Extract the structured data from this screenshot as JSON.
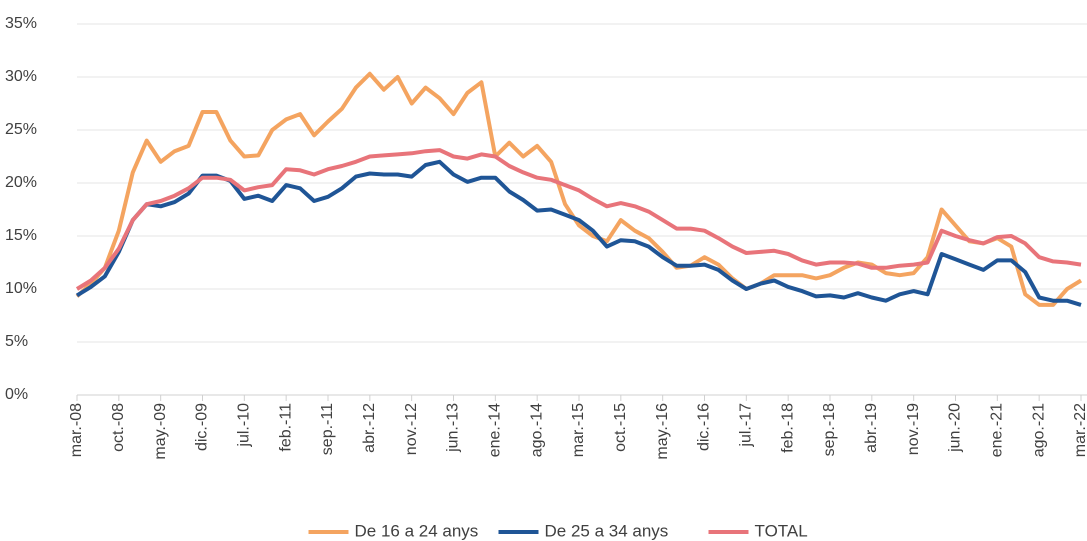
{
  "chart_data": {
    "type": "line",
    "categories": [
      "mar.-08",
      null,
      null,
      "oct.-08",
      null,
      null,
      "may.-09",
      null,
      null,
      "dic.-09",
      null,
      null,
      "jul.-10",
      null,
      null,
      "feb.-11",
      null,
      null,
      "sep.-11",
      null,
      null,
      "abr.-12",
      null,
      null,
      "nov.-12",
      null,
      null,
      "jun.-13",
      null,
      null,
      "ene.-14",
      null,
      null,
      "ago.-14",
      null,
      null,
      "mar.-15",
      null,
      null,
      "oct.-15",
      null,
      null,
      "may.-16",
      null,
      null,
      "dic.-16",
      null,
      null,
      "jul.-17",
      null,
      null,
      "feb.-18",
      null,
      null,
      "sep.-18",
      null,
      null,
      "abr.-19",
      null,
      null,
      "nov.-19",
      null,
      null,
      "jun.-20",
      null,
      null,
      "ene.-21",
      null,
      null,
      "ago.-21",
      null,
      null,
      "mar.-22"
    ],
    "series": [
      {
        "name": "De 16 a 24 anys",
        "color": "#f4a460",
        "values": [
          9.3,
          10.5,
          12,
          15.5,
          21,
          24,
          22,
          23,
          23.5,
          26.7,
          26.7,
          24,
          22.5,
          22.6,
          25,
          26,
          26.5,
          24.5,
          25.8,
          27,
          29,
          30.3,
          28.8,
          30,
          27.5,
          29,
          28,
          26.5,
          28.5,
          29.5,
          22.5,
          23.8,
          22.5,
          23.5,
          22,
          18,
          16,
          15,
          14.5,
          16.5,
          15.5,
          14.8,
          13.5,
          12,
          12.2,
          13,
          12.3,
          11,
          10,
          10.5,
          11.3,
          11.3,
          11.3,
          11,
          11.3,
          12,
          12.5,
          12.3,
          11.5,
          11.3,
          11.5,
          13,
          17.5,
          16,
          14.5,
          14.3,
          14.8,
          14,
          9.5,
          8.5,
          8.5,
          10,
          10.8
        ]
      },
      {
        "name": "De 25 a 34 anys",
        "color": "#1f5596",
        "values": [
          9.4,
          10.2,
          11.2,
          13.5,
          16.5,
          18,
          17.8,
          18.2,
          19,
          20.7,
          20.7,
          20.2,
          18.5,
          18.8,
          18.3,
          19.8,
          19.5,
          18.3,
          18.7,
          19.5,
          20.6,
          20.9,
          20.8,
          20.8,
          20.6,
          21.7,
          22,
          20.8,
          20.1,
          20.5,
          20.5,
          19.2,
          18.4,
          17.4,
          17.5,
          17,
          16.5,
          15.5,
          14,
          14.6,
          14.5,
          14,
          13,
          12.2,
          12.2,
          12.3,
          11.8,
          10.8,
          10,
          10.5,
          10.8,
          10.2,
          9.8,
          9.3,
          9.4,
          9.2,
          9.6,
          9.2,
          8.9,
          9.5,
          9.8,
          9.5,
          13.3,
          12.8,
          12.3,
          11.8,
          12.7,
          12.7,
          11.6,
          9.2,
          8.9,
          8.9,
          8.5
        ]
      },
      {
        "name": "TOTAL",
        "color": "#e8747a",
        "values": [
          10,
          10.8,
          12,
          13.8,
          16.5,
          18,
          18.3,
          18.8,
          19.5,
          20.5,
          20.5,
          20.3,
          19.3,
          19.6,
          19.8,
          21.3,
          21.2,
          20.8,
          21.3,
          21.6,
          22,
          22.5,
          22.6,
          22.7,
          22.8,
          23,
          23.1,
          22.5,
          22.3,
          22.7,
          22.5,
          21.6,
          21,
          20.5,
          20.3,
          19.8,
          19.3,
          18.5,
          17.8,
          18.1,
          17.8,
          17.3,
          16.5,
          15.7,
          15.7,
          15.5,
          14.8,
          14,
          13.4,
          13.5,
          13.6,
          13.3,
          12.7,
          12.3,
          12.5,
          12.5,
          12.4,
          12,
          12,
          12.2,
          12.3,
          12.5,
          15.5,
          15,
          14.6,
          14.3,
          14.9,
          15,
          14.3,
          13,
          12.6,
          12.5,
          12.3
        ]
      }
    ],
    "ylim": [
      0,
      35
    ],
    "yticks": [
      {
        "value": 0,
        "label": "0%"
      },
      {
        "value": 5,
        "label": "5%"
      },
      {
        "value": 10,
        "label": "10%"
      },
      {
        "value": 15,
        "label": "15%"
      },
      {
        "value": 20,
        "label": "20%"
      },
      {
        "value": 25,
        "label": "25%"
      },
      {
        "value": 30,
        "label": "30%"
      },
      {
        "value": 35,
        "label": "35%"
      }
    ],
    "grid": true,
    "legend": "bottom"
  }
}
